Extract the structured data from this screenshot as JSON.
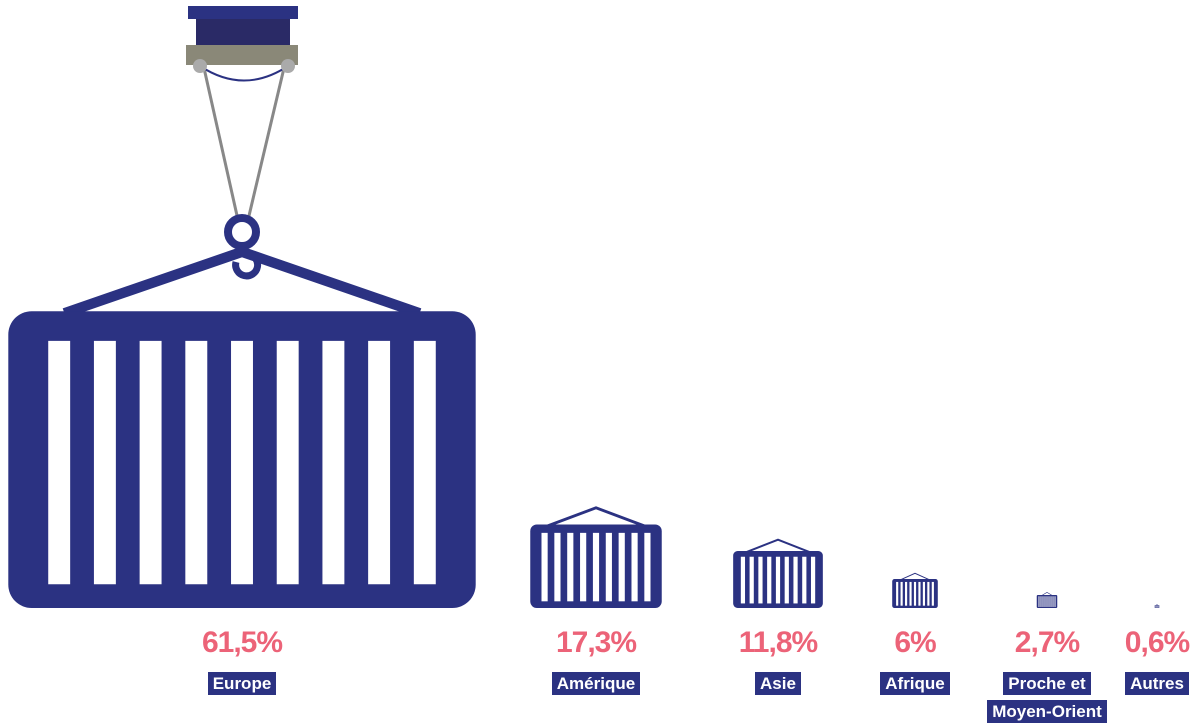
{
  "chart_data": {
    "type": "pictogram",
    "categories": [
      "Europe",
      "Amérique",
      "Asie",
      "Afrique",
      "Proche et Moyen-Orient",
      "Autres"
    ],
    "values": [
      61.5,
      17.3,
      11.8,
      6,
      2.7,
      0.6
    ],
    "value_labels": [
      "61,5%",
      "17,3%",
      "11,8%",
      "6%",
      "2,7%",
      "0,6%"
    ],
    "color": "#2b3282",
    "label_color": "#ec6378"
  }
}
